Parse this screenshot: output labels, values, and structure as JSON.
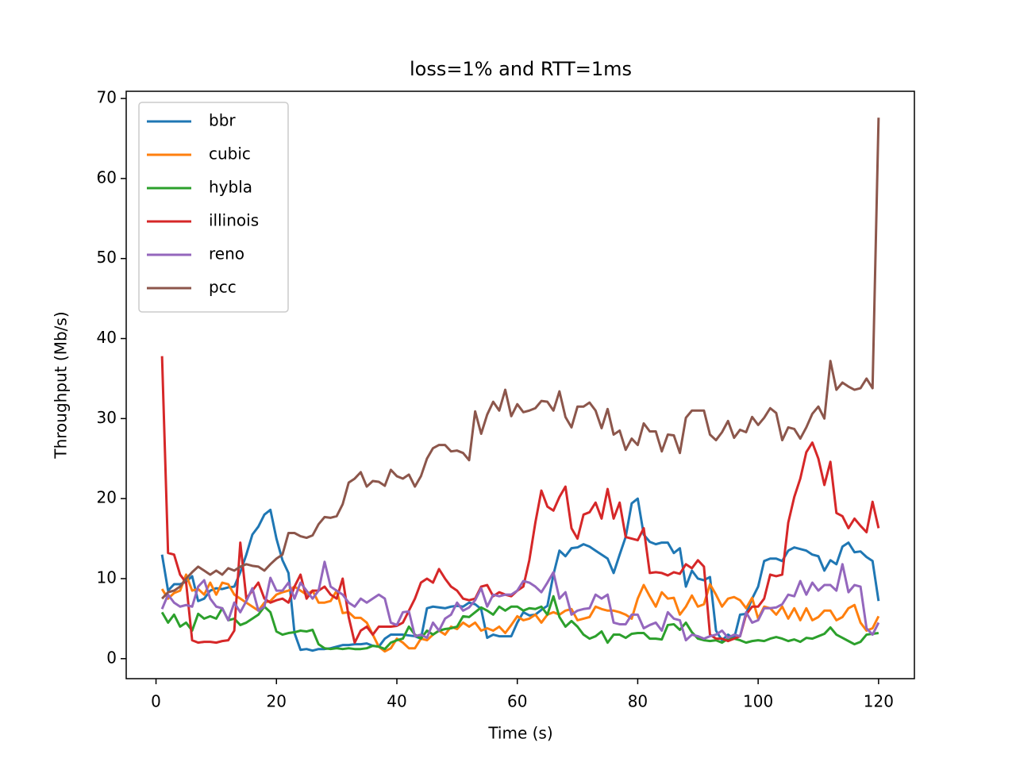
{
  "chart_data": {
    "type": "line",
    "title": "loss=1% and RTT=1ms",
    "x_label": "Time (s)",
    "y_label": "Throughput (Mb/s)",
    "x": [
      1,
      2,
      3,
      4,
      5,
      6,
      7,
      8,
      9,
      10,
      11,
      12,
      13,
      14,
      15,
      16,
      17,
      18,
      19,
      20,
      21,
      22,
      23,
      24,
      25,
      26,
      27,
      28,
      29,
      30,
      31,
      32,
      33,
      34,
      35,
      36,
      37,
      38,
      39,
      40,
      41,
      42,
      43,
      44,
      45,
      46,
      47,
      48,
      49,
      50,
      51,
      52,
      53,
      54,
      55,
      56,
      57,
      58,
      59,
      60,
      61,
      62,
      63,
      64,
      65,
      66,
      67,
      68,
      69,
      70,
      71,
      72,
      73,
      74,
      75,
      76,
      77,
      78,
      79,
      80,
      81,
      82,
      83,
      84,
      85,
      86,
      87,
      88,
      89,
      90,
      91,
      92,
      93,
      94,
      95,
      96,
      97,
      98,
      99,
      100,
      101,
      102,
      103,
      104,
      105,
      106,
      107,
      108,
      109,
      110,
      111,
      112,
      113,
      114,
      115,
      116,
      117,
      118,
      119,
      120
    ],
    "series": [
      {
        "name": "bbr",
        "color": "#1f77b4",
        "values": [
          13,
          8.5,
          9.3,
          9.3,
          9.6,
          10.3,
          7.2,
          7.5,
          8.5,
          8.8,
          8.7,
          8.9,
          9,
          10.8,
          13,
          15.5,
          16.5,
          18,
          18.6,
          15,
          12.3,
          10.7,
          3.2,
          1.1,
          1.2,
          1,
          1.2,
          1.2,
          1.3,
          1.5,
          1.7,
          1.7,
          1.8,
          1.8,
          1.9,
          1.6,
          1.5,
          2.5,
          3,
          3,
          3,
          2.9,
          2.8,
          2.5,
          6.3,
          6.5,
          6.4,
          6.3,
          6.5,
          6.6,
          6.5,
          7,
          6.8,
          6.2,
          2.6,
          3,
          2.8,
          2.8,
          2.8,
          4.5,
          5.8,
          5.4,
          5.5,
          6.1,
          6.6,
          10.5,
          13.5,
          12.8,
          13.8,
          13.9,
          14.3,
          14,
          13.5,
          13,
          12.5,
          10.7,
          13,
          15.2,
          19.4,
          20,
          15.5,
          14.6,
          14.3,
          14.5,
          14.5,
          13.2,
          13.8,
          9,
          11,
          10,
          9.8,
          10.2,
          3.5,
          2.3,
          3,
          2.5,
          5.5,
          5.6,
          7.5,
          9,
          12.2,
          12.5,
          12.5,
          12.2,
          13.5,
          13.9,
          13.7,
          13.5,
          13,
          12.8,
          11,
          12.3,
          11.8,
          14,
          14.5,
          13.3,
          13.4,
          12.7,
          12.2,
          7.2
        ]
      },
      {
        "name": "cubic",
        "color": "#ff7f0e",
        "values": [
          8.7,
          7.5,
          8.2,
          8.5,
          10.5,
          8.5,
          8.7,
          8,
          9.5,
          8,
          9.5,
          9.3,
          8,
          7.5,
          7,
          6.5,
          6,
          7,
          7.2,
          8,
          8.3,
          8.5,
          9,
          8.5,
          8,
          8.5,
          7,
          7,
          7.2,
          8.5,
          5.7,
          5.8,
          5.1,
          5.1,
          4.5,
          3,
          1.5,
          0.9,
          1.3,
          2.5,
          2,
          1.3,
          1.3,
          2.5,
          2.3,
          3,
          3.5,
          3,
          4,
          3.7,
          4.5,
          4,
          4.5,
          3.5,
          3.8,
          3.5,
          4,
          3.2,
          4.2,
          5.3,
          4.8,
          5,
          5.5,
          4.5,
          5.5,
          5.8,
          5.5,
          6,
          6.2,
          4.8,
          5,
          5.2,
          6.5,
          6.2,
          6,
          6,
          5.8,
          5.5,
          5,
          7.5,
          9.2,
          7.8,
          6.5,
          8.3,
          7.5,
          7.6,
          5.5,
          6.5,
          7.9,
          6.5,
          6.8,
          9.3,
          8,
          6.5,
          7.5,
          7.7,
          7.3,
          6.3,
          7.6,
          5,
          6.5,
          6.3,
          5.5,
          6.5,
          5,
          6.3,
          4.8,
          6.3,
          4.8,
          5.2,
          6,
          6,
          4.8,
          5.2,
          6.3,
          6.7,
          4.5,
          3.5,
          3.8,
          5.3
        ]
      },
      {
        "name": "hybla",
        "color": "#2ca02c",
        "values": [
          5.8,
          4.5,
          5.5,
          4,
          4.5,
          3.5,
          5.6,
          5,
          5.3,
          5,
          6.3,
          4.8,
          5,
          4.2,
          4.5,
          5,
          5.5,
          6.5,
          5.8,
          3.4,
          3,
          3.2,
          3.3,
          3.5,
          3.4,
          3.6,
          1.8,
          1.3,
          1.2,
          1.3,
          1.2,
          1.3,
          1.2,
          1.2,
          1.3,
          1.6,
          1.5,
          1.2,
          2,
          2.3,
          2.5,
          4,
          3,
          2.5,
          3.5,
          3,
          3.5,
          3.7,
          3.8,
          4,
          5.3,
          5.2,
          5.8,
          6.4,
          6,
          5.5,
          6.5,
          6,
          6.5,
          6.5,
          6,
          6.3,
          6.2,
          6.5,
          5.5,
          7.8,
          5.2,
          4,
          4.7,
          4,
          3,
          2.5,
          2.8,
          3.4,
          2,
          3,
          3,
          2.6,
          3.1,
          3.2,
          3.2,
          2.5,
          2.5,
          2.4,
          4.2,
          4.3,
          3.6,
          4.5,
          3.3,
          2.5,
          2.3,
          2.2,
          2.3,
          2,
          2.5,
          2.5,
          2.3,
          2,
          2.2,
          2.3,
          2.2,
          2.5,
          2.7,
          2.5,
          2.2,
          2.4,
          2.1,
          2.6,
          2.5,
          2.8,
          3.1,
          3.9,
          3,
          2.6,
          2.2,
          1.8,
          2.1,
          3,
          3.1,
          3.2
        ]
      },
      {
        "name": "illinois",
        "color": "#d62728",
        "values": [
          37.8,
          13.2,
          13,
          10.5,
          9.5,
          2.3,
          2,
          2.1,
          2.1,
          2,
          2.2,
          2.3,
          3.5,
          14.5,
          7.5,
          8.5,
          9.5,
          7.5,
          7,
          7.3,
          7.5,
          7,
          9,
          10.5,
          7.5,
          8.5,
          8.5,
          9,
          8,
          7.5,
          10,
          5.2,
          2,
          3.5,
          4,
          3,
          4,
          4,
          4,
          4.1,
          4.5,
          6,
          7.5,
          9.5,
          10,
          9.5,
          11.2,
          10,
          9,
          8.5,
          7.5,
          7.3,
          7.5,
          9,
          9.2,
          7.8,
          8.3,
          8,
          7.8,
          8.5,
          9,
          12.3,
          17,
          21,
          19,
          18.5,
          20.2,
          21.5,
          16.3,
          15,
          18,
          18.3,
          19.5,
          17.5,
          21.2,
          17.5,
          19.5,
          15.2,
          15,
          14.8,
          16.3,
          10.7,
          10.8,
          10.7,
          10.4,
          10.8,
          10.6,
          11.8,
          11.3,
          12.3,
          11.5,
          3,
          2.5,
          2.5,
          2.2,
          2.5,
          2.8,
          5.5,
          6.5,
          6.5,
          7.5,
          10.5,
          10.3,
          10.5,
          17,
          20.2,
          22.5,
          25.8,
          27,
          25,
          21.7,
          24.6,
          18.2,
          17.8,
          16.3,
          17.5,
          16.6,
          15.8,
          19.6,
          16.3
        ]
      },
      {
        "name": "reno",
        "color": "#9467bd",
        "values": [
          6.2,
          8,
          7,
          6.5,
          6.7,
          6.5,
          9,
          9.8,
          7.5,
          6.5,
          6.3,
          4.8,
          7,
          5.8,
          7.2,
          8.8,
          6,
          6.5,
          10.1,
          8.5,
          8.5,
          9.5,
          7.5,
          9.5,
          8.5,
          7.5,
          8.5,
          12.1,
          9,
          8.5,
          8,
          7,
          6.5,
          7.5,
          7,
          7.5,
          8,
          7.5,
          4.5,
          4.2,
          5.8,
          5.9,
          2.8,
          3,
          2.6,
          4.5,
          3.5,
          5,
          5.5,
          7,
          6,
          6.4,
          7.3,
          8.8,
          6.5,
          8,
          7.8,
          8,
          8,
          8.5,
          9.7,
          9.5,
          9,
          8.3,
          9.5,
          10.8,
          7.5,
          8.3,
          5.5,
          6,
          6.2,
          6.3,
          8,
          7.5,
          8,
          4.5,
          4.3,
          4.3,
          5.5,
          5.5,
          3.8,
          4.2,
          4.5,
          3.5,
          5.8,
          5,
          4.8,
          2.3,
          3,
          2.8,
          2.5,
          2.8,
          3,
          3.5,
          2.6,
          3,
          2.8,
          5.8,
          4.5,
          4.8,
          6.3,
          6.3,
          6.4,
          6.8,
          8,
          7.8,
          9.7,
          8,
          9.5,
          8.5,
          9.2,
          9.2,
          8.5,
          11.8,
          8.3,
          9.2,
          9,
          3.8,
          3,
          4.5
        ]
      },
      {
        "name": "pcc",
        "color": "#8c564b",
        "values": [
          7.5,
          8.3,
          8.5,
          9,
          10,
          10.8,
          11.5,
          11,
          10.5,
          11,
          10.5,
          11.3,
          11,
          11.5,
          11.8,
          11.6,
          11.5,
          11,
          11.8,
          12.5,
          13,
          15.7,
          15.7,
          15.3,
          15.1,
          15.4,
          16.8,
          17.7,
          17.6,
          17.8,
          19.3,
          22,
          22.5,
          23.3,
          21.5,
          22.2,
          22.1,
          21.6,
          23.6,
          22.8,
          22.5,
          23,
          21.5,
          22.8,
          25,
          26.3,
          26.7,
          26.7,
          25.9,
          26,
          25.7,
          24.8,
          30.9,
          28.1,
          30.5,
          32.1,
          31,
          33.6,
          30.3,
          31.8,
          30.8,
          31,
          31.3,
          32.2,
          32.1,
          31,
          33.4,
          30.2,
          28.9,
          31.5,
          31.5,
          32,
          31,
          28.8,
          31.2,
          28,
          28.5,
          26.1,
          27.5,
          26.7,
          29.4,
          28.4,
          28.4,
          25.9,
          28,
          27.9,
          25.7,
          30.1,
          31,
          31,
          31,
          28,
          27.3,
          28.3,
          29.7,
          27.6,
          28.6,
          28.3,
          30.2,
          29.2,
          30.1,
          31.3,
          30.7,
          27.3,
          28.9,
          28.7,
          27.5,
          28.9,
          30.6,
          31.5,
          30,
          37.2,
          33.6,
          34.5,
          34,
          33.6,
          33.8,
          35,
          33.8,
          67.6
        ]
      }
    ],
    "xlim": [
      -4.95,
      125.95
    ],
    "ylim": [
      -2.5,
      70.9
    ],
    "xticks": [
      0,
      20,
      40,
      60,
      80,
      100,
      120
    ],
    "yticks": [
      0,
      10,
      20,
      30,
      40,
      50,
      60,
      70
    ],
    "legend": "upper left"
  }
}
